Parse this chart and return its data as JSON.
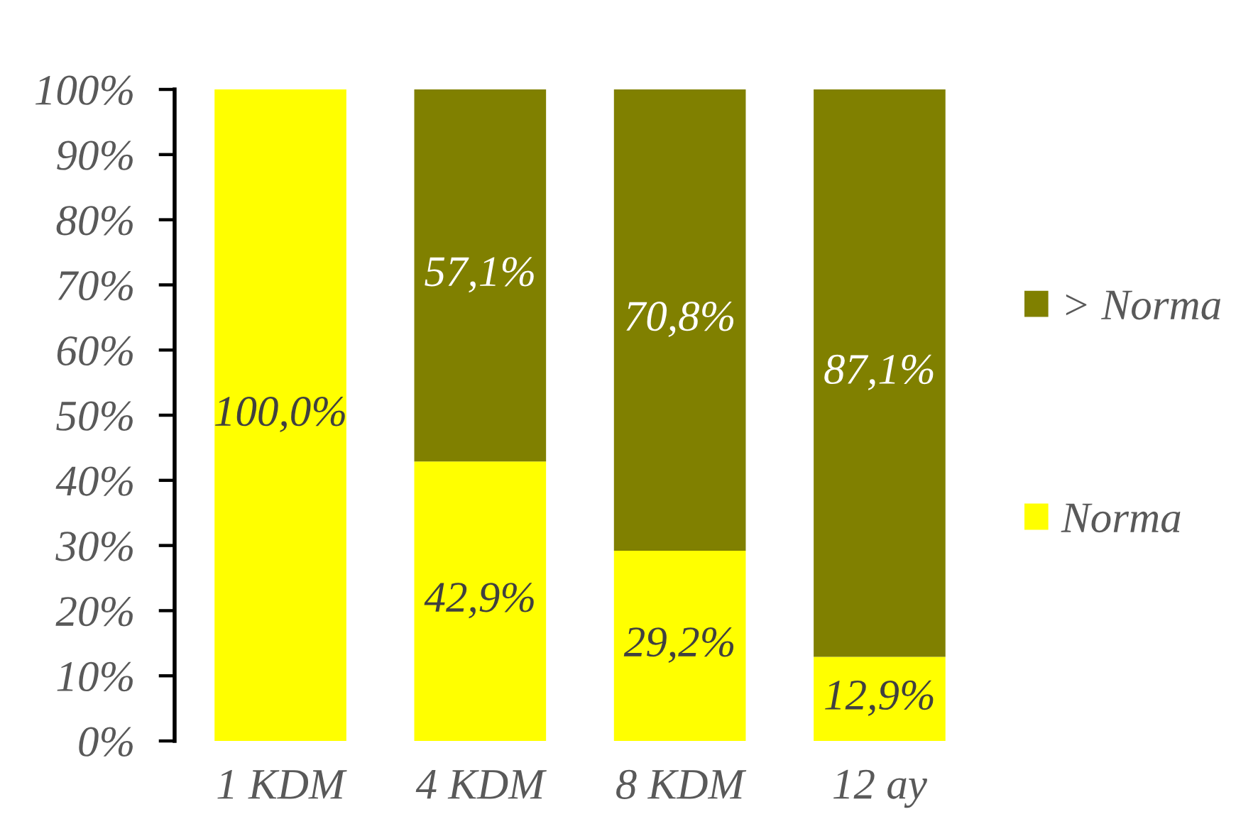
{
  "chart_data": {
    "type": "bar",
    "stacked": true,
    "categories": [
      "1 KDM",
      "4 KDM",
      "8 KDM",
      "12 ay"
    ],
    "series": [
      {
        "name": "Norma",
        "color": "#ffff00",
        "values": [
          100.0,
          42.9,
          29.2,
          12.9
        ],
        "value_labels": [
          "100,0%",
          "42,9%",
          "29,2%",
          "12,9%"
        ]
      },
      {
        "name": "> Norma",
        "color": "#808000",
        "values": [
          null,
          57.1,
          70.8,
          87.1
        ],
        "value_labels": [
          null,
          "57,1%",
          "70,8%",
          "87,1%"
        ]
      }
    ],
    "ylim": [
      0,
      100
    ],
    "yticks": [
      {
        "value": 0,
        "label": "0%"
      },
      {
        "value": 10,
        "label": "10%"
      },
      {
        "value": 20,
        "label": "20%"
      },
      {
        "value": 30,
        "label": "30%"
      },
      {
        "value": 40,
        "label": "40%"
      },
      {
        "value": 50,
        "label": "50%"
      },
      {
        "value": 60,
        "label": "60%"
      },
      {
        "value": 70,
        "label": "70%"
      },
      {
        "value": 80,
        "label": "80%"
      },
      {
        "value": 90,
        "label": "90%"
      },
      {
        "value": 100,
        "label": "100%"
      }
    ],
    "legend": "right"
  }
}
